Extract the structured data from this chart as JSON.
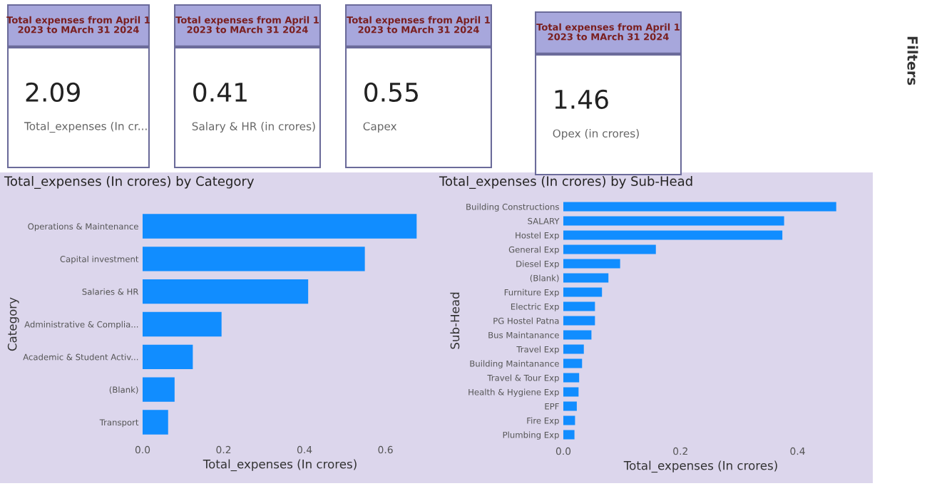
{
  "chart_data": [
    {
      "type": "other",
      "title": "Total expenses from April 1\n2023 to MArch 31 2024",
      "annotations": [
        "2.09",
        "Total_expenses (In cr..."
      ]
    },
    {
      "type": "other",
      "title": "Total expenses from April 1\n2023 to MArch 31 2024",
      "annotations": [
        "0.41",
        "Salary & HR (in crores)"
      ]
    },
    {
      "type": "other",
      "title": "Total expenses from April 1\n2023 to MArch 31 2024",
      "annotations": [
        "0.55",
        "Capex"
      ]
    },
    {
      "type": "other",
      "title": "Total expenses from April 1\n2023 to MArch 31 2024",
      "annotations": [
        "1.46",
        "Opex (in crores)"
      ]
    },
    {
      "type": "bar",
      "orientation": "horizontal",
      "title": "Total_expenses (In crores) by Category",
      "xlabel": "Total_expenses (In crores)",
      "ylabel": "Category",
      "categories": [
        "Operations & Maintenance",
        "Capital investment",
        "Salaries & HR",
        "Administrative & Complia...",
        "Academic & Student Activ...",
        "(Blank)",
        "Transport"
      ],
      "color": "#118dff",
      "values": [
        0.677,
        0.549,
        0.409,
        0.195,
        0.124,
        0.079,
        0.063
      ],
      "xlim": [
        0,
        0.68
      ],
      "xticks": [
        {
          "value": 0,
          "label": "0.0"
        },
        0.2,
        0.4,
        0.6
      ],
      "grid": false,
      "legend": false
    },
    {
      "type": "bar",
      "orientation": "horizontal",
      "title": "Total_expenses (In crores) by Sub-Head",
      "xlabel": "Total_expenses (In crores)",
      "ylabel": "Sub-Head",
      "categories": [
        "Building Constructions",
        "SALARY",
        "Hostel Exp",
        "General Exp",
        "Diesel Exp",
        "(Blank)",
        "Furniture Exp",
        "Electric Exp",
        "PG Hostel Patna",
        "Bus Maintanance",
        "Travel Exp",
        "Building Maintanance",
        "Travel & Tour Exp",
        "Health & Hygiene Exp",
        "EPF",
        "Fire Exp",
        "Plumbing Exp"
      ],
      "color": "#118dff",
      "values": [
        0.466,
        0.377,
        0.374,
        0.158,
        0.097,
        0.077,
        0.066,
        0.054,
        0.054,
        0.048,
        0.035,
        0.032,
        0.027,
        0.026,
        0.023,
        0.02,
        0.019
      ],
      "xlim": [
        0,
        0.47
      ],
      "xticks": [
        {
          "value": 0,
          "label": "0.0"
        },
        0.2,
        0.4
      ],
      "grid": false,
      "legend": false
    },
    {
      "type": "other",
      "annotations": [
        "Filters"
      ]
    }
  ]
}
